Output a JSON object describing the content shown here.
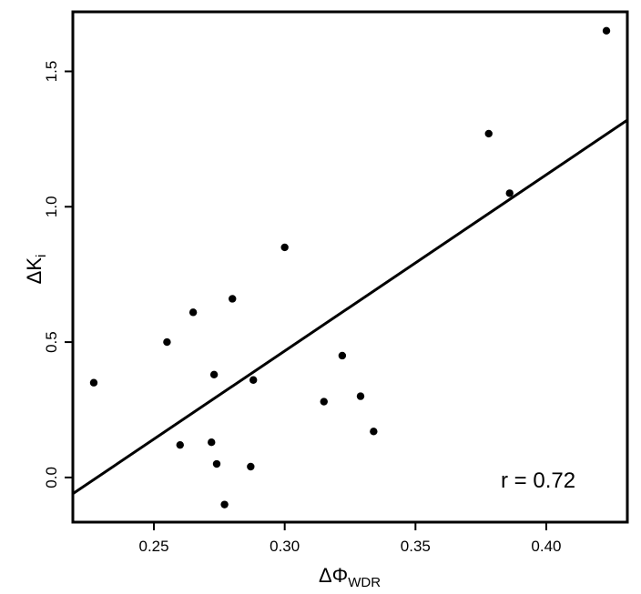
{
  "chart_data": {
    "type": "scatter",
    "xlabel_main": "ΔΦ",
    "xlabel_sub": "WDR",
    "ylabel_main": "ΔK",
    "ylabel_sub": "i",
    "xlim": [
      0.219,
      0.431
    ],
    "ylim": [
      -0.165,
      1.72
    ],
    "xticks": [
      0.25,
      0.3,
      0.35,
      0.4
    ],
    "xtick_labels": [
      "0.25",
      "0.30",
      "0.35",
      "0.40"
    ],
    "yticks": [
      0.0,
      0.5,
      1.0,
      1.5
    ],
    "ytick_labels": [
      "0.0",
      "0.5",
      "1.0",
      "1.5"
    ],
    "grid": false,
    "legend": "none",
    "points": [
      {
        "x": 0.227,
        "y": 0.35
      },
      {
        "x": 0.255,
        "y": 0.5
      },
      {
        "x": 0.26,
        "y": 0.12
      },
      {
        "x": 0.265,
        "y": 0.61
      },
      {
        "x": 0.272,
        "y": 0.13
      },
      {
        "x": 0.273,
        "y": 0.38
      },
      {
        "x": 0.274,
        "y": 0.05
      },
      {
        "x": 0.277,
        "y": -0.1
      },
      {
        "x": 0.28,
        "y": 0.66
      },
      {
        "x": 0.287,
        "y": 0.04
      },
      {
        "x": 0.288,
        "y": 0.36
      },
      {
        "x": 0.3,
        "y": 0.85
      },
      {
        "x": 0.315,
        "y": 0.28
      },
      {
        "x": 0.322,
        "y": 0.45
      },
      {
        "x": 0.329,
        "y": 0.3
      },
      {
        "x": 0.334,
        "y": 0.17
      },
      {
        "x": 0.378,
        "y": 1.27
      },
      {
        "x": 0.386,
        "y": 1.05
      },
      {
        "x": 0.423,
        "y": 1.65
      }
    ],
    "fit_line": {
      "x": [
        0.219,
        0.431
      ],
      "y": [
        -0.06,
        1.32
      ]
    },
    "annotation": "r = 0.72"
  }
}
